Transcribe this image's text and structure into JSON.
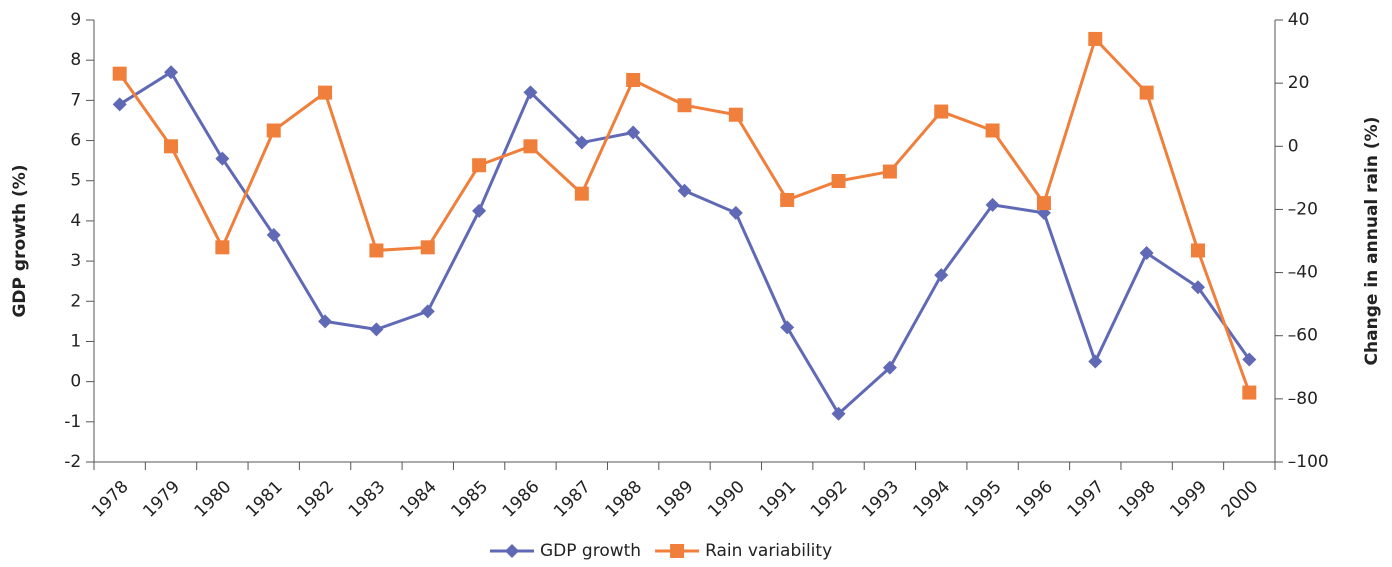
{
  "chart_data": {
    "type": "line",
    "categories": [
      "1978",
      "1979",
      "1980",
      "1981",
      "1982",
      "1983",
      "1984",
      "1985",
      "1986",
      "1987",
      "1988",
      "1989",
      "1990",
      "1991",
      "1992",
      "1993",
      "1994",
      "1995",
      "1996",
      "1997",
      "1998",
      "1999",
      "2000"
    ],
    "y_label": "GDP growth (%)",
    "y2_label": "Change in annual rain (%)",
    "ylim": [
      -2,
      9
    ],
    "yticks": [
      -2,
      -1,
      0,
      1,
      2,
      3,
      4,
      5,
      6,
      7,
      8,
      9
    ],
    "y2lim": [
      -100,
      40
    ],
    "y2ticks": [
      {
        "value": -100,
        "label": "–100"
      },
      {
        "value": -80,
        "label": "–80"
      },
      {
        "value": -60,
        "label": "–60"
      },
      {
        "value": -40,
        "label": "–40"
      },
      {
        "value": -20,
        "label": "–20"
      },
      0,
      20,
      40
    ],
    "legend": "bottom",
    "series": [
      {
        "name": "GDP growth",
        "color": "#6069b5",
        "marker": "diamond",
        "values": [
          6.9,
          7.7,
          5.55,
          3.65,
          1.5,
          1.3,
          1.75,
          4.25,
          7.2,
          5.95,
          6.2,
          4.75,
          4.2,
          1.35,
          -0.8,
          0.35,
          2.65,
          4.4,
          4.2,
          0.5,
          3.2,
          2.35,
          0.55
        ]
      },
      {
        "name": "Rain variability",
        "color": "#f07f3c",
        "marker": "square",
        "axis": "y2",
        "values": [
          23,
          0,
          -32,
          5,
          17,
          -33,
          -32,
          -6,
          0,
          -15,
          21,
          13,
          10,
          -17,
          -11,
          -8,
          11,
          5,
          -18,
          34,
          17,
          -33,
          -78
        ]
      }
    ]
  }
}
